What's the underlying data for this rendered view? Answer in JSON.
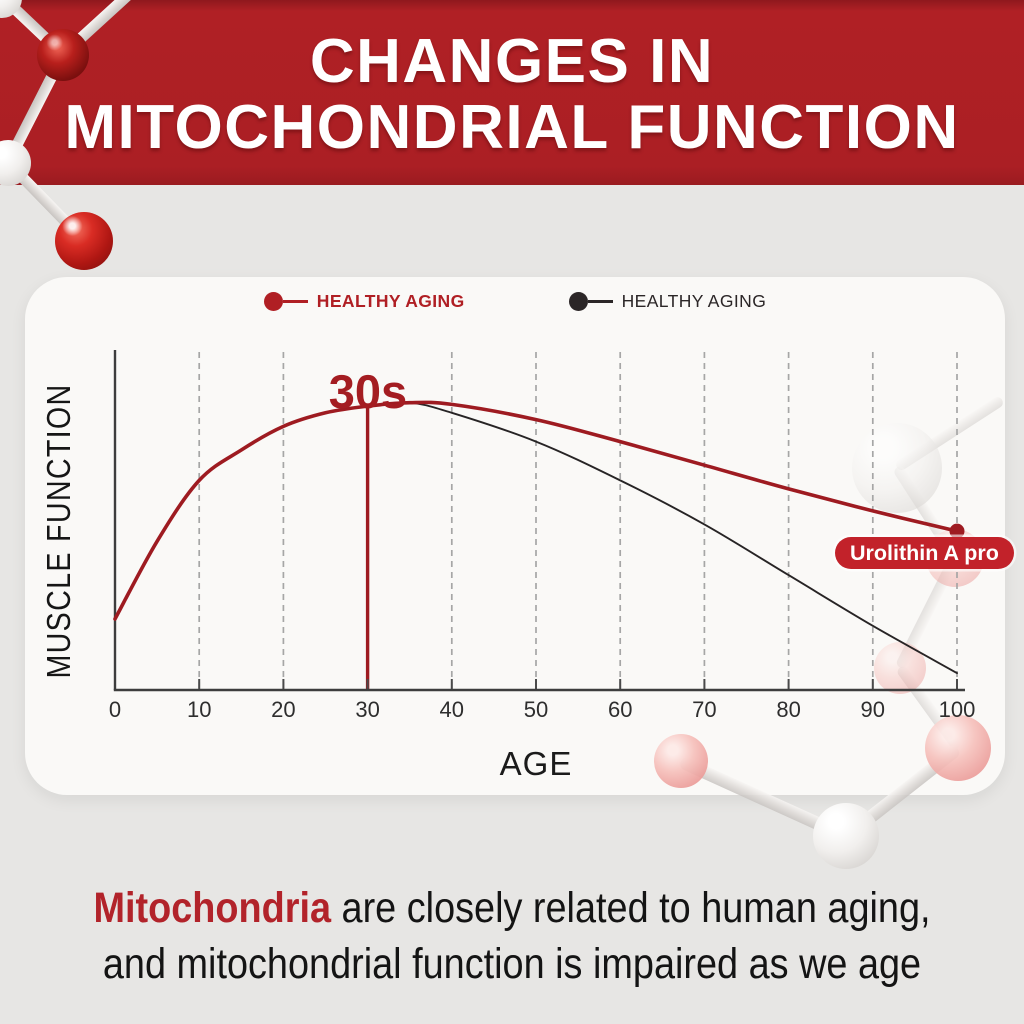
{
  "header": {
    "title_line1": "CHANGES IN",
    "title_line2": "MITOCHONDRIAL FUNCTION"
  },
  "legend": {
    "items": [
      {
        "label": "HEALTHY AGING",
        "color": "#b01f24",
        "style": "bold-red"
      },
      {
        "label": "HEALTHY AGING",
        "color": "#2b2627",
        "style": "regular-black"
      }
    ]
  },
  "chart_data": {
    "type": "line",
    "title": "",
    "xlabel": "AGE",
    "ylabel": "MUSCLE FUNCTION",
    "xlim": [
      0,
      100
    ],
    "ylim_note": "unlabeled relative muscle-function scale 0-100",
    "x_ticks": [
      0,
      10,
      20,
      30,
      40,
      50,
      60,
      70,
      80,
      90,
      100
    ],
    "grid": "vertical-dashed",
    "legend_position": "top",
    "annotations": {
      "peak_label": "30s",
      "peak_age": 30,
      "peak_marker": "red vertical line from curve to axis",
      "endpoint_label": "Urolithin A pro",
      "endpoint_age": 100
    },
    "series": [
      {
        "name": "HEALTHY AGING",
        "color": "#9e1b21",
        "line_width": 3.6,
        "end_dot": true,
        "x": [
          0,
          5,
          10,
          15,
          20,
          25,
          30,
          35,
          40,
          50,
          60,
          70,
          80,
          90,
          100
        ],
        "y": [
          21,
          44,
          62,
          71,
          78,
          82,
          84,
          85,
          84.5,
          80,
          73.5,
          66.5,
          59.5,
          53,
          47
        ]
      },
      {
        "name": "HEALTHY AGING",
        "color": "#272425",
        "line_width": 1.9,
        "end_dot": false,
        "x": [
          0,
          5,
          10,
          15,
          20,
          25,
          30,
          35,
          40,
          50,
          60,
          70,
          80,
          90,
          100
        ],
        "y": [
          21,
          44,
          62,
          71,
          78,
          82,
          84,
          85,
          82,
          73.5,
          62,
          49,
          34,
          19,
          5
        ]
      }
    ]
  },
  "badge": {
    "label": "Urolithin A pro"
  },
  "caption": {
    "highlight": "Mitochondria",
    "line1_rest": " are closely related to human aging,",
    "line2": "and mitochondrial function is impaired as we age"
  },
  "colors": {
    "header_bg": "#ab1f24",
    "accent_red": "#b01f24",
    "curve_red": "#9e1b21",
    "curve_black": "#272425",
    "badge_bg": "#c2222a",
    "page_bg": "#e7e6e4",
    "card_bg": "#faf9f7",
    "grid_gray": "#a6a6a6"
  }
}
